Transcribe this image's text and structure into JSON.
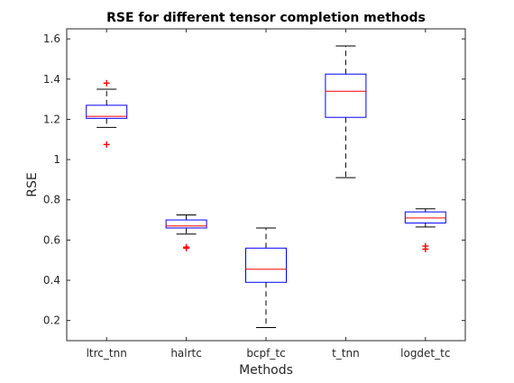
{
  "chart_data": {
    "type": "boxplot",
    "title": "RSE for different tensor completion methods",
    "xlabel": "Methods",
    "ylabel": "RSE",
    "ylim": [
      0.1,
      1.65
    ],
    "yticks": [
      0.2,
      0.4,
      0.6,
      0.8,
      1,
      1.2,
      1.4,
      1.6
    ],
    "ytick_labels": [
      "0.2",
      "0.4",
      "0.6",
      "0.8",
      "1",
      "1.2",
      "1.4",
      "1.6"
    ],
    "categories": [
      "ltrc_tnn",
      "halrtc",
      "bcpf_tc",
      "t_tnn",
      "logdet_tc"
    ],
    "boxes": [
      {
        "category": "ltrc_tnn",
        "whisker_low": 1.16,
        "q1": 1.205,
        "median": 1.215,
        "q3": 1.27,
        "whisker_high": 1.35,
        "outliers": [
          1.38,
          1.075
        ]
      },
      {
        "category": "halrtc",
        "whisker_low": 0.63,
        "q1": 0.66,
        "median": 0.67,
        "q3": 0.7,
        "whisker_high": 0.725,
        "outliers": [
          0.565,
          0.56
        ]
      },
      {
        "category": "bcpf_tc",
        "whisker_low": 0.165,
        "q1": 0.39,
        "median": 0.455,
        "q3": 0.56,
        "whisker_high": 0.66,
        "outliers": []
      },
      {
        "category": "t_tnn",
        "whisker_low": 0.91,
        "q1": 1.21,
        "median": 1.34,
        "q3": 1.425,
        "whisker_high": 1.565,
        "outliers": []
      },
      {
        "category": "logdet_tc",
        "whisker_low": 0.665,
        "q1": 0.685,
        "median": 0.71,
        "q3": 0.74,
        "whisker_high": 0.755,
        "outliers": [
          0.57,
          0.555
        ]
      }
    ],
    "grid": false,
    "legend": "none",
    "colors": {
      "box": "#0000ff",
      "median": "#ff0000",
      "whisker": "#000000",
      "outlier": "#ff0000",
      "axis": "#262626"
    }
  }
}
